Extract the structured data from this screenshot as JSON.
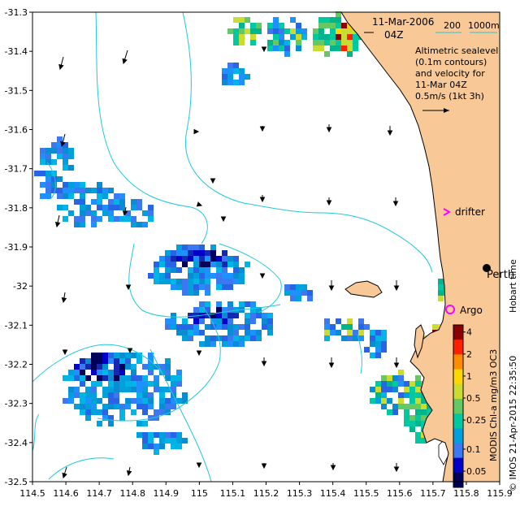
{
  "map": {
    "date_line": "11-Mar-2006",
    "time_line": "04Z",
    "depth_labels": [
      "200",
      "1000m"
    ],
    "altimetry_lines": [
      "Altimetric sealevel",
      "(0.1m contours)",
      "and velocity for",
      "11-Mar 04Z"
    ],
    "velocity_scale_label": "0.5m/s (1kt 3h)",
    "places": {
      "perth": "Perth",
      "hobart_time": "Hobart time",
      "drifter": "drifter",
      "argo": "Argo"
    },
    "credit": "© IMOS 21-Apr-2015 22:35:50",
    "colorbar_title": "MODIS Chl-a mg/m3 OC3",
    "colors": {
      "land": "#f8c896",
      "contour": "#22c8dc",
      "drifter": "#ff00ff",
      "argo": "#ff00ff",
      "velocity_scale": "#000000"
    }
  },
  "chart_data": {
    "type": "heatmap",
    "title": "",
    "x_ticks": [
      "114.5",
      "114.6",
      "114.7",
      "114.8",
      "114.9",
      "115",
      "115.1",
      "115.2",
      "115.3",
      "115.4",
      "115.5",
      "115.6",
      "115.7",
      "115.8",
      "115.9"
    ],
    "y_ticks": [
      "-31.3",
      "-31.4",
      "-31.5",
      "-31.6",
      "-31.7",
      "-31.8",
      "-31.9",
      "-32",
      "-32.1",
      "-32.2",
      "-32.3",
      "-32.4",
      "-32.5"
    ],
    "xlim": [
      114.5,
      115.9
    ],
    "ylim": [
      -32.5,
      -31.3
    ],
    "colorbar": {
      "labels": [
        "4",
        "2",
        "1",
        "0.5",
        "0.25",
        "0.1",
        "0.05"
      ],
      "values": [
        4,
        2,
        1,
        0.5,
        0.25,
        0.1,
        0.05
      ],
      "colors": [
        "#8b0000",
        "#ff2000",
        "#ff8c00",
        "#ffd700",
        "#c8dc32",
        "#64c864",
        "#00c8a0",
        "#00a0dc",
        "#3c78f0",
        "#0000c8",
        "#00005a"
      ]
    },
    "markers": [
      {
        "name": "Perth",
        "lon": 115.86,
        "lat": -31.95
      },
      {
        "name": "Argo",
        "lon": 115.75,
        "lat": -32.07
      },
      {
        "name": "drifter",
        "lon": 115.76,
        "lat": -31.82
      }
    ]
  }
}
